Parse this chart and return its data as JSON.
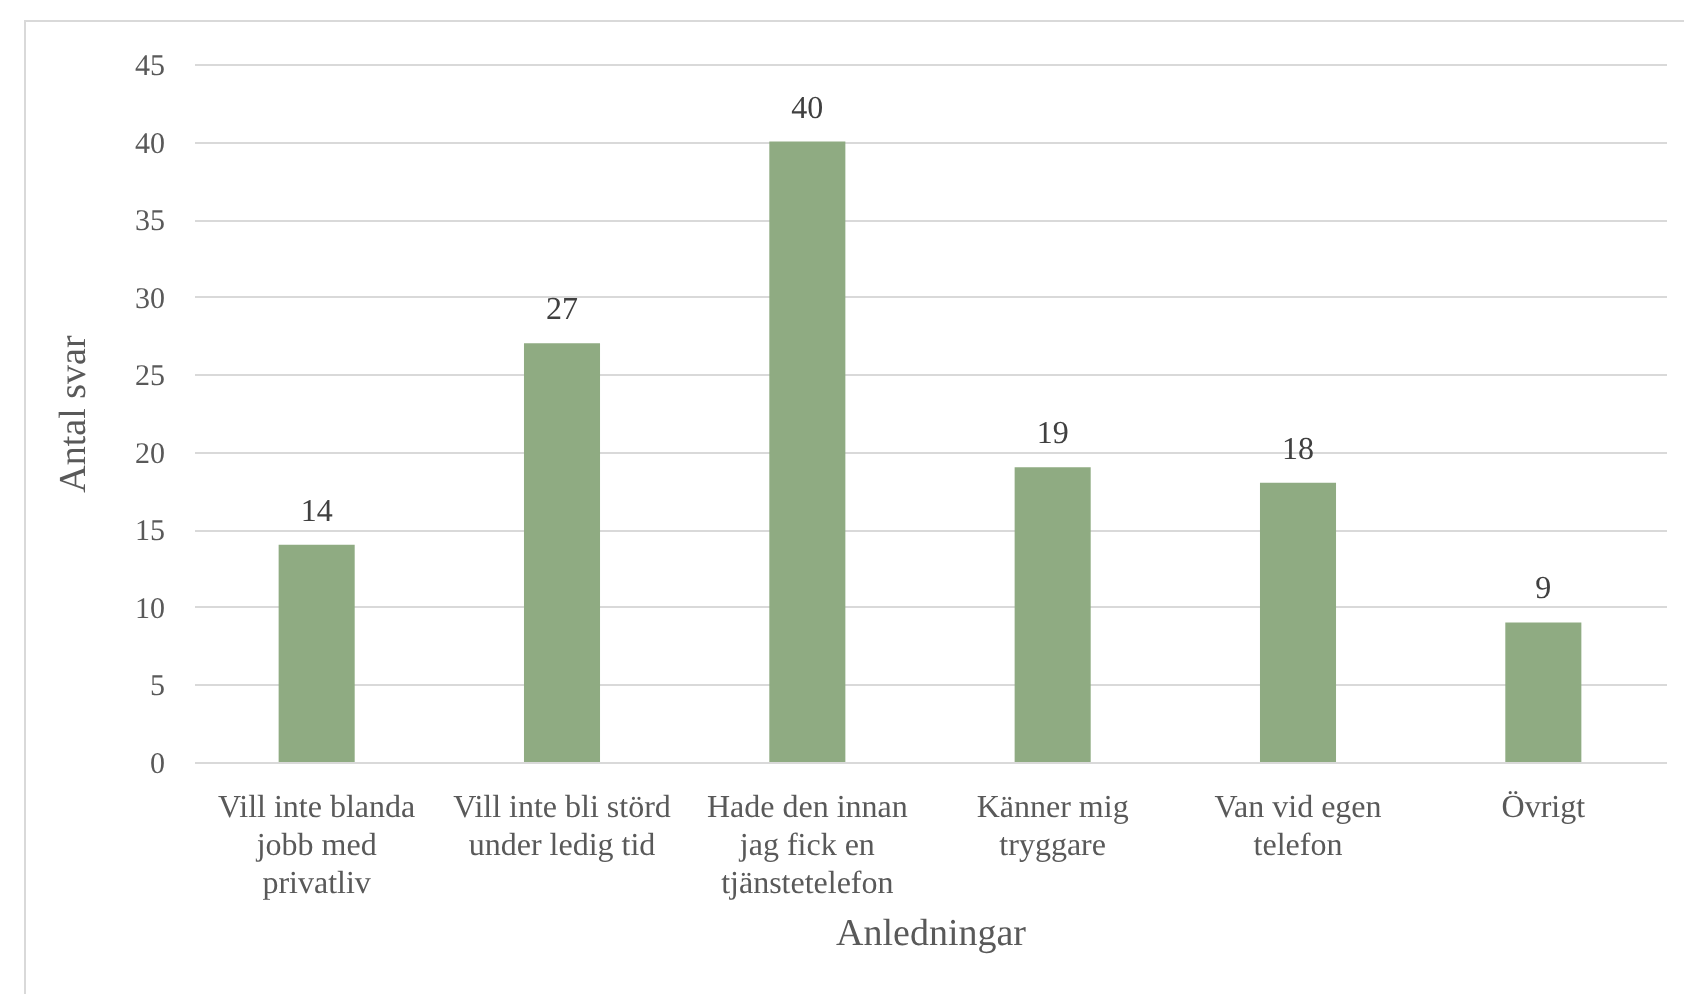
{
  "chart_data": {
    "type": "bar",
    "xlabel": "Anledningar",
    "ylabel": "Antal svar",
    "categories": [
      "Vill inte blanda jobb med privatliv",
      "Vill inte bli störd under ledig tid",
      "Hade den innan jag fick en tjänstetelefon",
      "Känner mig tryggare",
      "Van vid egen telefon",
      "Övrigt"
    ],
    "values": [
      14,
      27,
      40,
      19,
      18,
      9
    ],
    "color": "#8fab82",
    "ylim": [
      0,
      45
    ],
    "yticks": [
      0,
      5,
      10,
      15,
      20,
      25,
      30,
      35,
      40,
      45
    ],
    "grid": "y",
    "data_labels": true
  }
}
